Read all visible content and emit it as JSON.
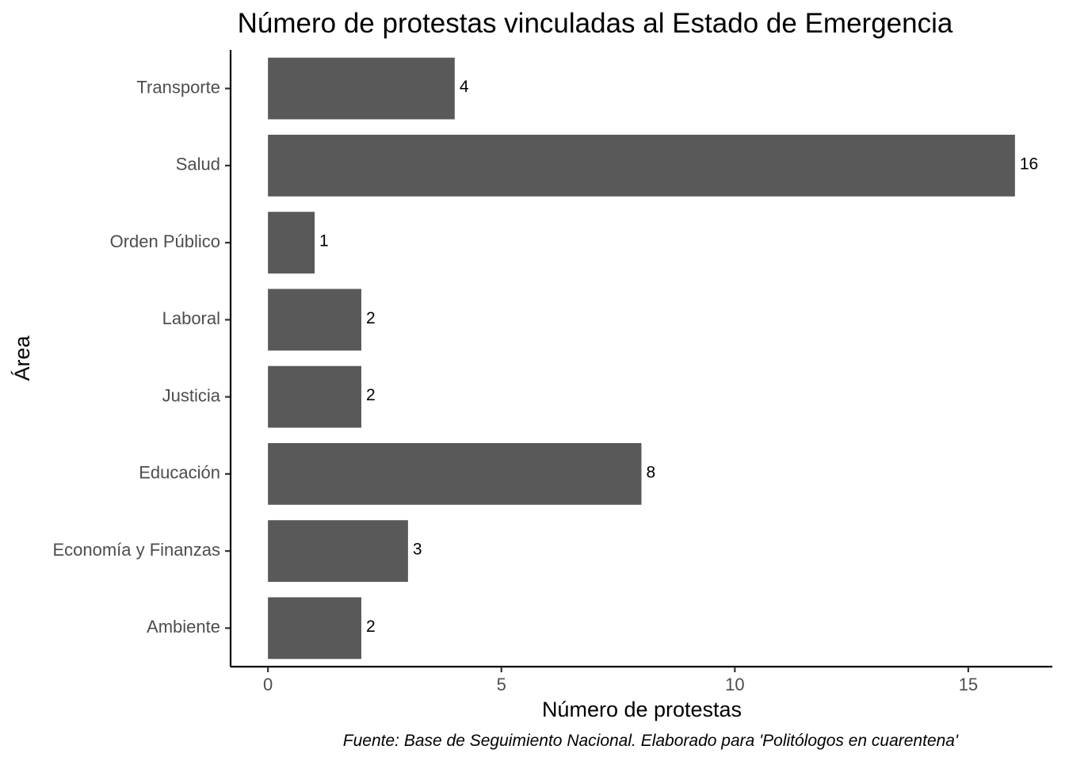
{
  "chart_data": {
    "type": "bar",
    "orientation": "horizontal",
    "title": "Número de protestas vinculadas al Estado de Emergencia",
    "xlabel": "Número de protestas",
    "ylabel": "Área",
    "caption": "Fuente: Base de Seguimiento Nacional. Elaborado para 'Politólogos en cuarentena'",
    "categories": [
      "Transporte",
      "Salud",
      "Orden Público",
      "Laboral",
      "Justicia",
      "Educación",
      "Economía y Finanzas",
      "Ambiente"
    ],
    "values": [
      4,
      16,
      1,
      2,
      2,
      8,
      3,
      2
    ],
    "data_labels": [
      "4",
      "16",
      "1",
      "2",
      "2",
      "8",
      "3",
      "2"
    ],
    "xticks": [
      0,
      5,
      10,
      15
    ],
    "xtick_labels": [
      "0",
      "5",
      "10",
      "15"
    ],
    "xlim": [
      -0.8,
      16.8
    ],
    "grid": false,
    "legend": "none",
    "bar_color": "#595959"
  }
}
